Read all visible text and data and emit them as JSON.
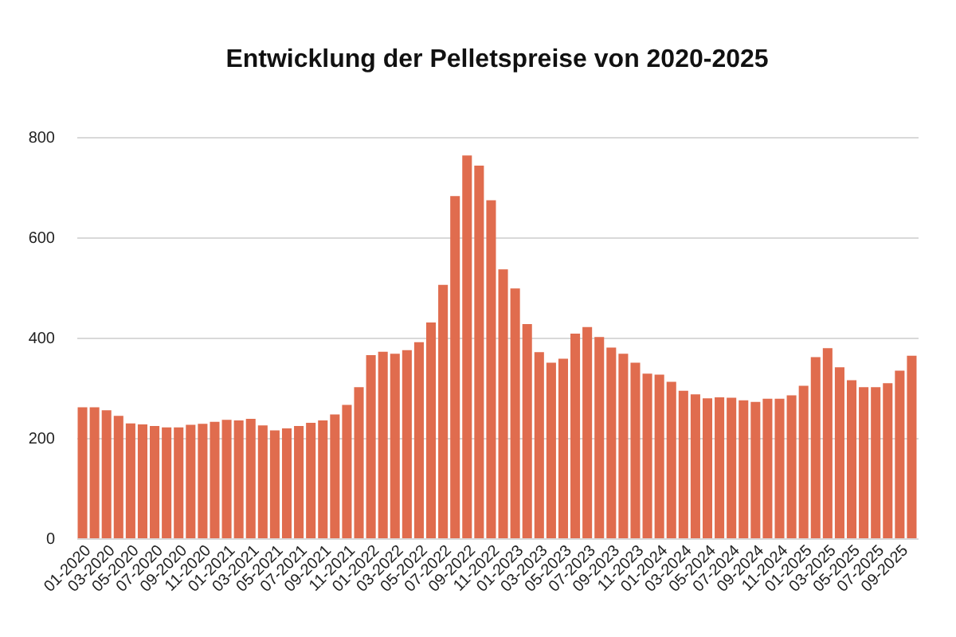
{
  "chart_data": {
    "type": "bar",
    "title": "Entwicklung der Pelletspreise von 2020-2025",
    "categories": [
      "01-2020",
      null,
      "03-2020",
      null,
      "05-2020",
      null,
      "07-2020",
      null,
      "09-2020",
      null,
      "11-2020",
      null,
      "01-2021",
      null,
      "03-2021",
      null,
      "05-2021",
      null,
      "07-2021",
      null,
      "09-2021",
      null,
      "11-2021",
      null,
      "01-2022",
      null,
      "03-2022",
      null,
      "05-2022",
      null,
      "07-2022",
      null,
      "09-2022",
      null,
      "11-2022",
      null,
      "01-2023",
      null,
      "03-2023",
      null,
      "05-2023",
      null,
      "07-2023",
      null,
      "09-2023",
      null,
      "11-2023",
      null,
      "01-2024",
      null,
      "03-2024",
      null,
      "05-2024",
      null,
      "07-2024",
      null,
      "09-2024",
      null,
      "11-2024",
      null,
      "01-2025",
      null,
      "03-2025",
      null,
      "05-2025",
      null,
      "07-2025",
      null,
      "09-2025",
      null
    ],
    "values": [
      261,
      261,
      255,
      244,
      229,
      227,
      224,
      221,
      221,
      226,
      228,
      232,
      236,
      235,
      238,
      225,
      215,
      219,
      224,
      230,
      235,
      247,
      266,
      301,
      365,
      372,
      368,
      375,
      391,
      430,
      505,
      682,
      763,
      743,
      674,
      536,
      498,
      427,
      371,
      350,
      358,
      408,
      421,
      401,
      380,
      368,
      350,
      328,
      326,
      312,
      294,
      287,
      279,
      281,
      280,
      275,
      272,
      278,
      278,
      285,
      304,
      361,
      379,
      341,
      315,
      301,
      301,
      309,
      334,
      364
    ],
    "color": "#e06c4e",
    "ylim": [
      0,
      800
    ],
    "yticks": [
      0,
      200,
      400,
      600,
      800
    ],
    "grid": "y"
  }
}
